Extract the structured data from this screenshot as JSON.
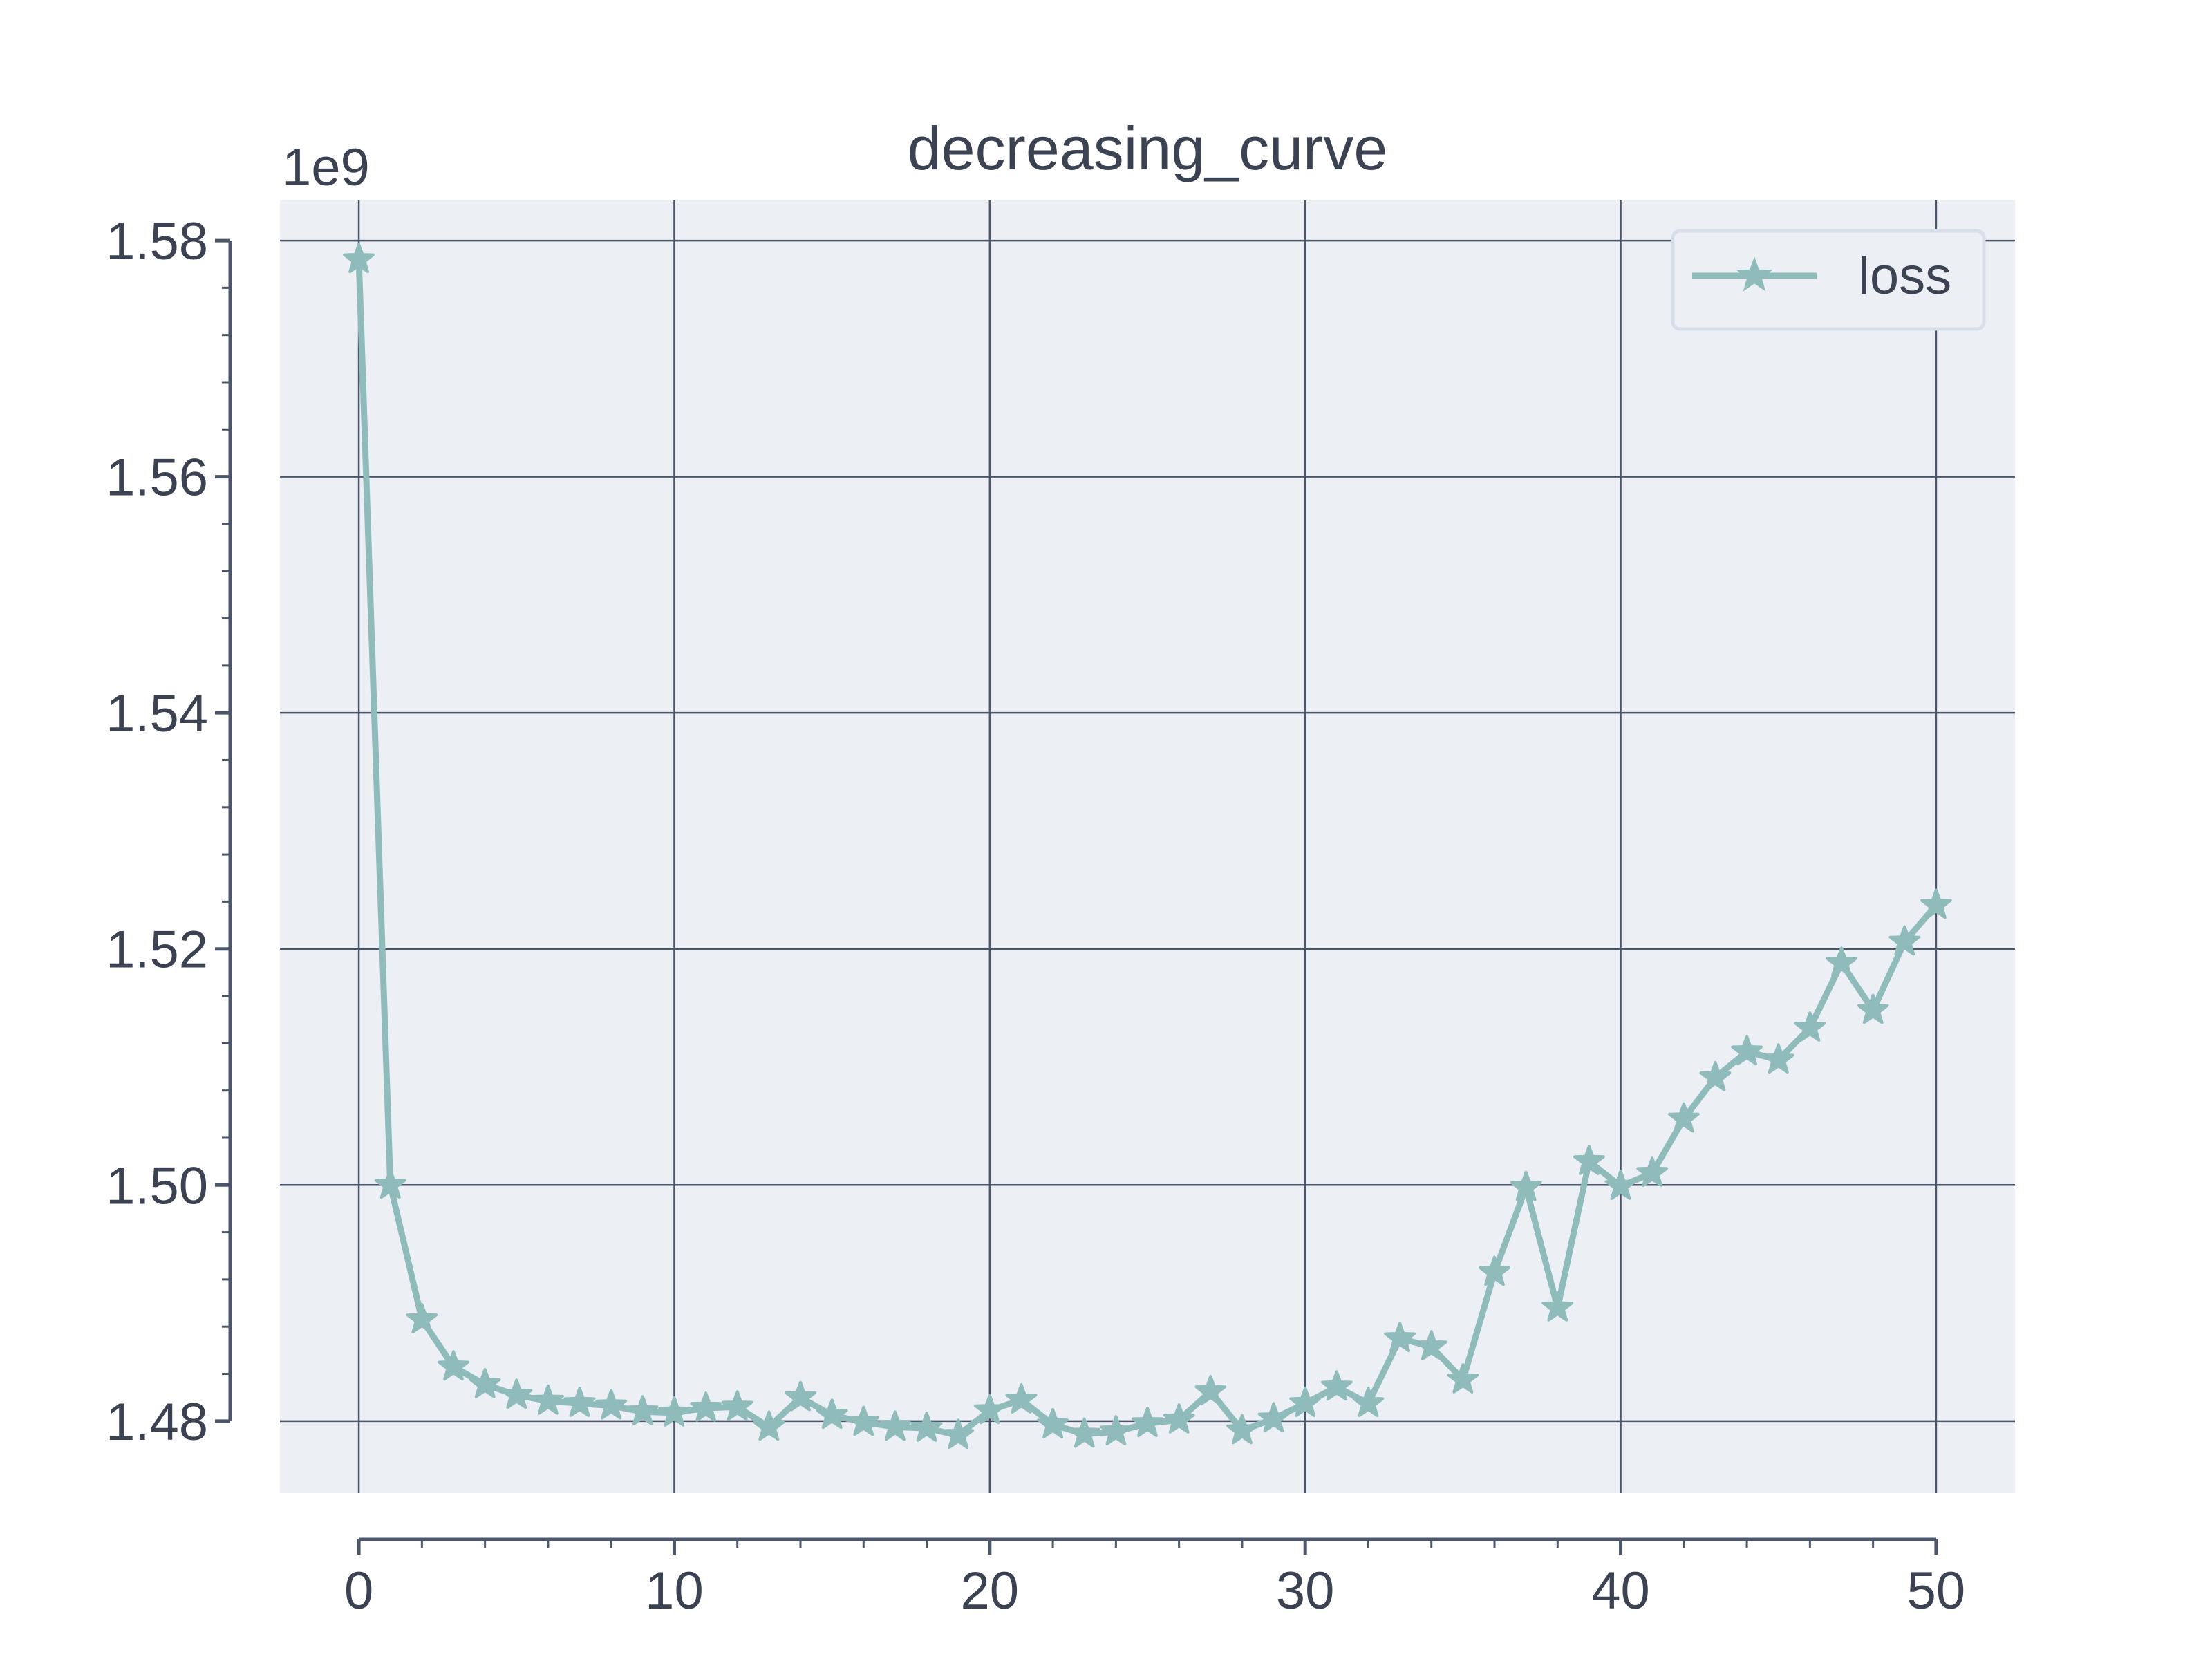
{
  "chart_data": {
    "type": "line",
    "title": "decreasing_curve",
    "xlabel": "",
    "ylabel": "",
    "y_offset_label": "1e9",
    "xlim": [
      -2.5,
      52.5
    ],
    "ylim": [
      1.4739,
      1.5834
    ],
    "x_ticks": [
      0,
      10,
      20,
      30,
      40,
      50
    ],
    "x_tick_labels": [
      "0",
      "10",
      "20",
      "30",
      "40",
      "50"
    ],
    "y_ticks": [
      1.48,
      1.5,
      1.52,
      1.54,
      1.56,
      1.58
    ],
    "y_tick_labels": [
      "1.48",
      "1.50",
      "1.52",
      "1.54",
      "1.56",
      "1.58"
    ],
    "grid": true,
    "legend_position": "top-right",
    "series": [
      {
        "name": "loss",
        "color": "#8fbcbb",
        "marker": "star",
        "x": [
          0,
          1,
          2,
          3,
          4,
          5,
          6,
          7,
          8,
          9,
          10,
          11,
          12,
          13,
          14,
          15,
          16,
          17,
          18,
          19,
          20,
          21,
          22,
          23,
          24,
          25,
          26,
          27,
          28,
          29,
          30,
          31,
          32,
          33,
          34,
          35,
          36,
          37,
          38,
          39,
          40,
          41,
          42,
          43,
          44,
          45,
          46,
          47,
          48,
          49,
          50
        ],
        "values": [
          1.5784,
          1.5,
          1.4886,
          1.4846,
          1.4831,
          1.4822,
          1.4817,
          1.4815,
          1.4813,
          1.4808,
          1.4807,
          1.4811,
          1.4812,
          1.4795,
          1.482,
          1.4805,
          1.4799,
          1.4795,
          1.4794,
          1.4788,
          1.4809,
          1.4818,
          1.4797,
          1.4789,
          1.4791,
          1.4798,
          1.4801,
          1.4825,
          1.4792,
          1.4802,
          1.4815,
          1.4829,
          1.4815,
          1.487,
          1.4863,
          1.4835,
          1.4926,
          1.4998,
          1.4896,
          1.502,
          1.4999,
          1.501,
          1.5056,
          1.5091,
          1.5113,
          1.5106,
          1.5133,
          1.5188,
          1.5148,
          1.5206,
          1.5237
        ]
      }
    ]
  },
  "colors": {
    "plot_background": "#eceff4",
    "grid": "#4c566a",
    "axis": "#4c566a",
    "text": "#3b4252",
    "legend_border": "#d8dee9"
  }
}
